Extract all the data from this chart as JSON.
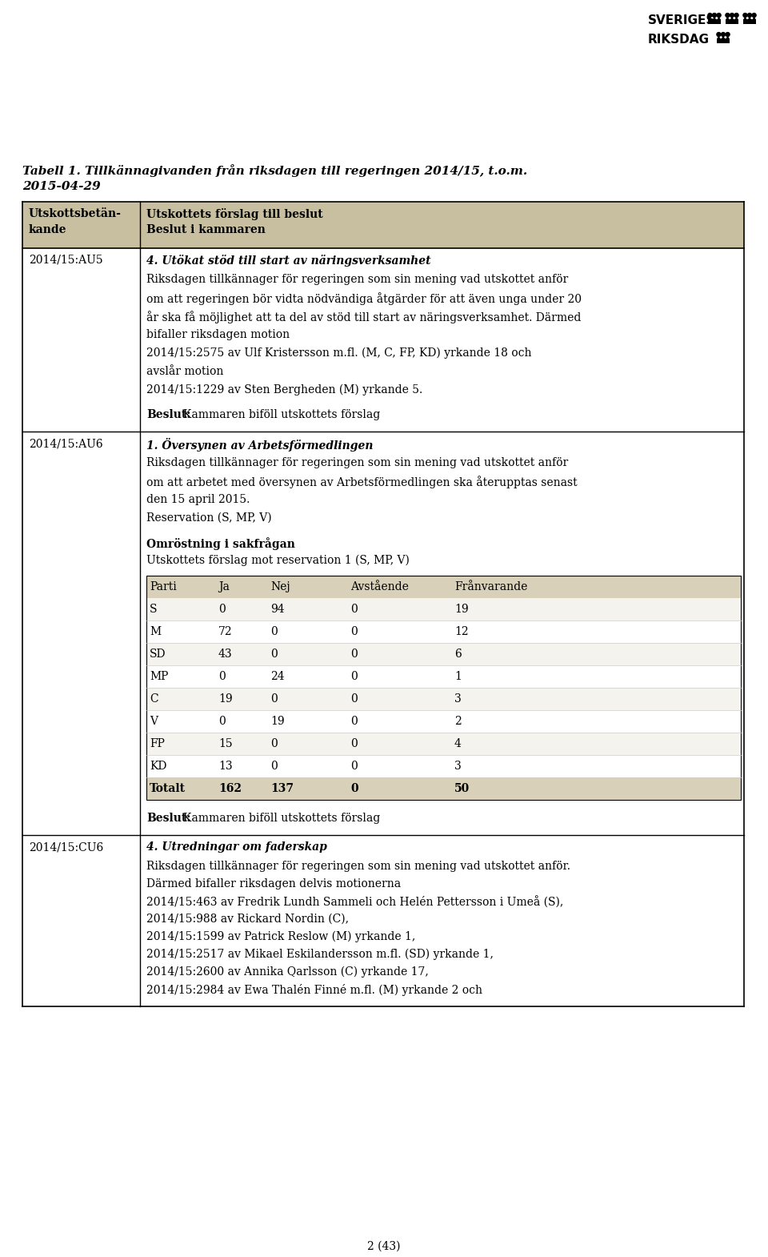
{
  "title_line1": "Tabell 1. Tillkännagivanden från riksdagen till regeringen 2014/15, t.o.m.",
  "title_line2": "2015-04-29",
  "header_col1_line1": "Utskottsbetän-",
  "header_col1_line2": "kande",
  "header_col2_line1": "Utskottets förslag till beslut",
  "header_col2_line2": "Beslut i kammaren",
  "row1_col1": "2014/15:AU5",
  "row1_title": "4. Utökat stöd till start av näringsverksamhet",
  "row1_lines": [
    "Riksdagen tillkännager för regeringen som sin mening vad utskottet anför",
    "om att regeringen bör vidta nödvändiga åtgärder för att även unga under 20",
    "år ska få möjlighet att ta del av stöd till start av näringsverksamhet. Därmed",
    "bifaller riksdagen motion",
    "2014/15:2575 av Ulf Kristersson m.fl. (M, C, FP, KD) yrkande 18 och",
    "avslår motion",
    "2014/15:1229 av Sten Bergheden (M) yrkande 5."
  ],
  "row1_beslut": "Kammaren biföll utskottets förslag",
  "row2_col1": "2014/15:AU6",
  "row2_title": "1. Översynen av Arbetsförmedlingen",
  "row2_lines": [
    "Riksdagen tillkännager för regeringen som sin mening vad utskottet anför",
    "om att arbetet med översynen av Arbetsförmedlingen ska återupptas senast",
    "den 15 april 2015.",
    "Reservation (S, MP, V)"
  ],
  "omrostning_title": "Omröstning i sakfrågan",
  "omrostning_sub": "Utskottets förslag mot reservation 1 (S, MP, V)",
  "vote_header": [
    "Parti",
    "Ja",
    "Nej",
    "Avstående",
    "Frånvarande"
  ],
  "vote_rows": [
    [
      "S",
      "0",
      "94",
      "0",
      "19"
    ],
    [
      "M",
      "72",
      "0",
      "0",
      "12"
    ],
    [
      "SD",
      "43",
      "0",
      "0",
      "6"
    ],
    [
      "MP",
      "0",
      "24",
      "0",
      "1"
    ],
    [
      "C",
      "19",
      "0",
      "0",
      "3"
    ],
    [
      "V",
      "0",
      "19",
      "0",
      "2"
    ],
    [
      "FP",
      "15",
      "0",
      "0",
      "4"
    ],
    [
      "KD",
      "13",
      "0",
      "0",
      "3"
    ]
  ],
  "vote_total": [
    "Totalt",
    "162",
    "137",
    "0",
    "50"
  ],
  "row2_beslut": "Kammaren biföll utskottets förslag",
  "row3_col1": "2014/15:CU6",
  "row3_title": "4. Utredningar om faderskap",
  "row3_lines": [
    "Riksdagen tillkännager för regeringen som sin mening vad utskottet anför.",
    "Därmed bifaller riksdagen delvis motionerna",
    "2014/15:463 av Fredrik Lundh Sammeli och Helén Pettersson i Umeå (S),",
    "2014/15:988 av Rickard Nordin (C),",
    "2014/15:1599 av Patrick Reslow (M) yrkande 1,",
    "2014/15:2517 av Mikael Eskilandersson m.fl. (SD) yrkande 1,",
    "2014/15:2600 av Annika Qarlsson (C) yrkande 17,",
    "2014/15:2984 av Ewa Thalén Finné m.fl. (M) yrkande 2 och"
  ],
  "footer": "2 (43)",
  "bg_color": "#ffffff",
  "border_color": "#000000",
  "header_bg": "#c8bfa0",
  "vote_header_bg": "#d8d0b8",
  "vote_row_bg_odd": "#f5f3ee",
  "vote_row_bg_even": "#ffffff",
  "text_color": "#000000"
}
